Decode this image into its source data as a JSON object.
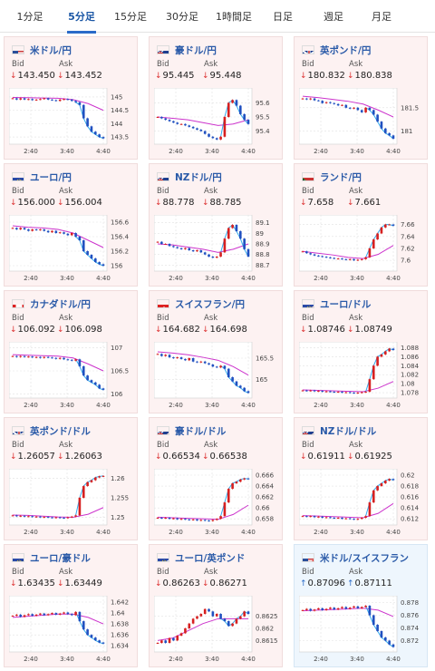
{
  "tabs": [
    "1分足",
    "5分足",
    "15分足",
    "30分足",
    "1時間足",
    "日足",
    "週足",
    "月足"
  ],
  "active_tab": 1,
  "labels": {
    "bid": "Bid",
    "ask": "Ask"
  },
  "colors": {
    "accent": "#2a6ac8",
    "down_bg": "#fdf2f2",
    "up_bg": "#eef6fd",
    "ma_line": "#cc33cc",
    "ma_fast": "#33aaee",
    "candle_up": "#d62020",
    "candle_down": "#2050c0"
  },
  "x_ticks": [
    "2:40",
    "3:40",
    "4:40"
  ],
  "cards": [
    {
      "pair": "米ドル/円",
      "flag": "us",
      "dir": "down",
      "bid": "143.450",
      "ask": "143.452",
      "yticks": [
        "145",
        "144.5",
        "144",
        "143.5"
      ],
      "ymin": 143.3,
      "ymax": 145.2,
      "shape": [
        144.95,
        144.9,
        144.95,
        144.9,
        144.92,
        144.88,
        144.9,
        144.92,
        144.95,
        144.9,
        144.88,
        144.85,
        144.9,
        144.92,
        144.9,
        144.85,
        144.8,
        144.7,
        144.2,
        143.9,
        143.7,
        143.6,
        143.5,
        143.45
      ],
      "ma": [
        144.98,
        144.97,
        144.96,
        144.95,
        144.9,
        144.75,
        144.5
      ]
    },
    {
      "pair": "豪ドル/円",
      "flag": "au",
      "dir": "down",
      "bid": "95.445",
      "ask": "95.448",
      "yticks": [
        "95.6",
        "95.5",
        "95.4"
      ],
      "ymin": 95.32,
      "ymax": 95.68,
      "shape": [
        95.5,
        95.49,
        95.48,
        95.47,
        95.46,
        95.45,
        95.45,
        95.44,
        95.43,
        95.42,
        95.41,
        95.4,
        95.38,
        95.36,
        95.35,
        95.34,
        95.36,
        95.5,
        95.6,
        95.62,
        95.58,
        95.52,
        95.48,
        95.45
      ],
      "ma": [
        95.5,
        95.49,
        95.48,
        95.46,
        95.44,
        95.45,
        95.48
      ]
    },
    {
      "pair": "英ポンド/円",
      "flag": "gb",
      "dir": "down",
      "bid": "180.832",
      "ask": "180.838",
      "yticks": [
        "181.5",
        "181"
      ],
      "ymin": 180.75,
      "ymax": 181.85,
      "shape": [
        181.7,
        181.68,
        181.7,
        181.66,
        181.65,
        181.6,
        181.62,
        181.6,
        181.58,
        181.55,
        181.56,
        181.5,
        181.48,
        181.5,
        181.45,
        181.4,
        181.5,
        181.45,
        181.35,
        181.2,
        181.05,
        180.95,
        180.9,
        180.83
      ],
      "ma": [
        181.75,
        181.72,
        181.68,
        181.64,
        181.58,
        181.45,
        181.3
      ]
    },
    {
      "pair": "ユーロ/円",
      "flag": "eu",
      "dir": "down",
      "bid": "156.000",
      "ask": "156.004",
      "yticks": [
        "156.6",
        "156.4",
        "156.2",
        "156"
      ],
      "ymin": 155.95,
      "ymax": 156.65,
      "shape": [
        156.52,
        156.5,
        156.52,
        156.5,
        156.48,
        156.5,
        156.49,
        156.5,
        156.48,
        156.46,
        156.48,
        156.45,
        156.46,
        156.44,
        156.42,
        156.45,
        156.4,
        156.35,
        156.2,
        156.15,
        156.1,
        156.05,
        156.02,
        156.0
      ],
      "ma": [
        156.55,
        156.53,
        156.52,
        156.5,
        156.45,
        156.35,
        156.25
      ]
    },
    {
      "pair": "NZドル/円",
      "flag": "nz",
      "dir": "down",
      "bid": "88.778",
      "ask": "88.785",
      "yticks": [
        "89.1",
        "89",
        "88.9",
        "88.8",
        "88.7"
      ],
      "ymin": 88.66,
      "ymax": 89.14,
      "shape": [
        88.92,
        88.9,
        88.9,
        88.88,
        88.87,
        88.86,
        88.85,
        88.86,
        88.84,
        88.83,
        88.84,
        88.82,
        88.8,
        88.78,
        88.77,
        88.78,
        88.82,
        88.95,
        89.05,
        89.08,
        89.02,
        88.95,
        88.85,
        88.78
      ],
      "ma": [
        88.9,
        88.89,
        88.87,
        88.85,
        88.82,
        88.85,
        88.9
      ]
    },
    {
      "pair": "ランド/円",
      "flag": "za",
      "dir": "down",
      "bid": "7.658",
      "ask": "7.661",
      "yticks": [
        "7.66",
        "7.64",
        "7.62",
        "7.6"
      ],
      "ymin": 7.585,
      "ymax": 7.67,
      "shape": [
        7.615,
        7.612,
        7.61,
        7.608,
        7.607,
        7.606,
        7.605,
        7.604,
        7.603,
        7.603,
        7.602,
        7.601,
        7.602,
        7.6,
        7.601,
        7.602,
        7.605,
        7.62,
        7.635,
        7.645,
        7.655,
        7.66,
        7.66,
        7.658
      ],
      "ma": [
        7.615,
        7.612,
        7.609,
        7.605,
        7.603,
        7.61,
        7.625
      ]
    },
    {
      "pair": "カナダドル/円",
      "flag": "ca",
      "dir": "down",
      "bid": "106.092",
      "ask": "106.098",
      "yticks": [
        "107",
        "106.5",
        "106"
      ],
      "ymin": 105.95,
      "ymax": 107.05,
      "shape": [
        106.82,
        106.8,
        106.82,
        106.8,
        106.81,
        106.79,
        106.8,
        106.78,
        106.8,
        106.79,
        106.78,
        106.76,
        106.78,
        106.75,
        106.74,
        106.72,
        106.75,
        106.6,
        106.4,
        106.3,
        106.25,
        106.2,
        106.12,
        106.09
      ],
      "ma": [
        106.85,
        106.84,
        106.83,
        106.82,
        106.78,
        106.65,
        106.5
      ]
    },
    {
      "pair": "スイスフラン/円",
      "flag": "ch",
      "dir": "down",
      "bid": "164.682",
      "ask": "164.698",
      "yticks": [
        "165.5",
        "165"
      ],
      "ymin": 164.6,
      "ymax": 165.8,
      "shape": [
        165.6,
        165.55,
        165.58,
        165.52,
        165.5,
        165.52,
        165.48,
        165.45,
        165.5,
        165.42,
        165.4,
        165.42,
        165.38,
        165.35,
        165.3,
        165.28,
        165.32,
        165.25,
        165.05,
        164.95,
        164.85,
        164.8,
        164.72,
        164.68
      ],
      "ma": [
        165.65,
        165.62,
        165.58,
        165.52,
        165.45,
        165.3,
        165.1
      ]
    },
    {
      "pair": "ユーロ/ドル",
      "flag": "eu_us",
      "dir": "down",
      "bid": "1.08746",
      "ask": "1.08749",
      "yticks": [
        "1.088",
        "1.086",
        "1.084",
        "1.082",
        "1.08",
        "1.078"
      ],
      "ymin": 1.0772,
      "ymax": 1.0885,
      "shape": [
        1.0785,
        1.0784,
        1.0785,
        1.0783,
        1.0784,
        1.0782,
        1.0783,
        1.0782,
        1.0781,
        1.0782,
        1.078,
        1.0781,
        1.078,
        1.0779,
        1.078,
        1.0781,
        1.0782,
        1.081,
        1.084,
        1.086,
        1.0865,
        1.0872,
        1.0878,
        1.0875
      ],
      "ma": [
        1.0786,
        1.0785,
        1.0784,
        1.0783,
        1.0782,
        1.079,
        1.0805
      ]
    },
    {
      "pair": "英ポンド/ドル",
      "flag": "gb_us",
      "dir": "down",
      "bid": "1.26057",
      "ask": "1.26063",
      "yticks": [
        "1.26",
        "1.255",
        "1.25"
      ],
      "ymin": 1.2485,
      "ymax": 1.2615,
      "shape": [
        1.2505,
        1.2503,
        1.2504,
        1.2502,
        1.2503,
        1.2501,
        1.2502,
        1.25,
        1.2501,
        1.25,
        1.2499,
        1.25,
        1.2499,
        1.2498,
        1.25,
        1.2502,
        1.2505,
        1.255,
        1.258,
        1.259,
        1.2595,
        1.2602,
        1.2605,
        1.2606
      ],
      "ma": [
        1.2506,
        1.2505,
        1.2503,
        1.2501,
        1.25,
        1.2508,
        1.2525
      ]
    },
    {
      "pair": "豪ドル/ドル",
      "flag": "au_us",
      "dir": "down",
      "bid": "0.66534",
      "ask": "0.66538",
      "yticks": [
        "0.666",
        "0.664",
        "0.662",
        "0.66",
        "0.658"
      ],
      "ymin": 0.6572,
      "ymax": 0.6665,
      "shape": [
        0.6582,
        0.6581,
        0.6582,
        0.658,
        0.6581,
        0.6579,
        0.658,
        0.6579,
        0.6578,
        0.6579,
        0.6577,
        0.6578,
        0.6577,
        0.6576,
        0.6578,
        0.658,
        0.6585,
        0.661,
        0.6635,
        0.6645,
        0.6648,
        0.6652,
        0.6654,
        0.6653
      ],
      "ma": [
        0.6583,
        0.6582,
        0.6581,
        0.658,
        0.6579,
        0.6588,
        0.6605
      ]
    },
    {
      "pair": "NZドル/ドル",
      "flag": "nz_us",
      "dir": "down",
      "bid": "0.61911",
      "ask": "0.61925",
      "yticks": [
        "0.62",
        "0.618",
        "0.616",
        "0.614",
        "0.612"
      ],
      "ymin": 0.6112,
      "ymax": 0.6205,
      "shape": [
        0.6125,
        0.6124,
        0.6125,
        0.6123,
        0.6124,
        0.6122,
        0.6123,
        0.6122,
        0.6121,
        0.6122,
        0.612,
        0.6121,
        0.612,
        0.6119,
        0.612,
        0.6122,
        0.6125,
        0.615,
        0.6172,
        0.618,
        0.6185,
        0.619,
        0.6193,
        0.6191
      ],
      "ma": [
        0.6126,
        0.6125,
        0.6124,
        0.6123,
        0.6122,
        0.613,
        0.6148
      ]
    },
    {
      "pair": "ユーロ/豪ドル",
      "flag": "eu_au",
      "dir": "down",
      "bid": "1.63435",
      "ask": "1.63449",
      "yticks": [
        "1.642",
        "1.64",
        "1.638",
        "1.636",
        "1.634"
      ],
      "ymin": 1.6332,
      "ymax": 1.6425,
      "shape": [
        1.6395,
        1.6397,
        1.6393,
        1.6396,
        1.6398,
        1.6395,
        1.6397,
        1.6399,
        1.6396,
        1.6398,
        1.64,
        1.6397,
        1.6399,
        1.6401,
        1.6398,
        1.6396,
        1.6402,
        1.6385,
        1.637,
        1.636,
        1.6355,
        1.635,
        1.6346,
        1.6344
      ],
      "ma": [
        1.6392,
        1.6394,
        1.6396,
        1.6398,
        1.6398,
        1.6392,
        1.638
      ]
    },
    {
      "pair": "ユーロ/英ポンド",
      "flag": "eu_gb",
      "dir": "down",
      "bid": "0.86263",
      "ask": "0.86271",
      "yticks": [
        "0.8625",
        "0.862",
        "0.8615"
      ],
      "ymin": 0.8611,
      "ymax": 0.8632,
      "shape": [
        0.8614,
        0.8615,
        0.8614,
        0.8616,
        0.8615,
        0.8617,
        0.8618,
        0.862,
        0.8622,
        0.8624,
        0.8625,
        0.8626,
        0.8628,
        0.8627,
        0.8625,
        0.8626,
        0.8624,
        0.8623,
        0.8621,
        0.8622,
        0.8624,
        0.8625,
        0.8627,
        0.8626
      ],
      "ma": [
        0.8615,
        0.8616,
        0.8619,
        0.8622,
        0.8624,
        0.8624,
        0.8624
      ]
    },
    {
      "pair": "米ドル/スイスフラン",
      "flag": "us_ch",
      "dir": "up",
      "bid": "0.87096",
      "ask": "0.87111",
      "yticks": [
        "0.878",
        "0.876",
        "0.874",
        "0.872"
      ],
      "ymin": 0.8705,
      "ymax": 0.8785,
      "shape": [
        0.8768,
        0.877,
        0.8767,
        0.8769,
        0.8771,
        0.8768,
        0.877,
        0.8772,
        0.8769,
        0.8771,
        0.8773,
        0.877,
        0.8772,
        0.8774,
        0.8771,
        0.8773,
        0.8775,
        0.876,
        0.8745,
        0.8735,
        0.8725,
        0.872,
        0.8714,
        0.871
      ],
      "ma": [
        0.8767,
        0.8768,
        0.8769,
        0.877,
        0.8771,
        0.8768,
        0.8758
      ]
    }
  ]
}
